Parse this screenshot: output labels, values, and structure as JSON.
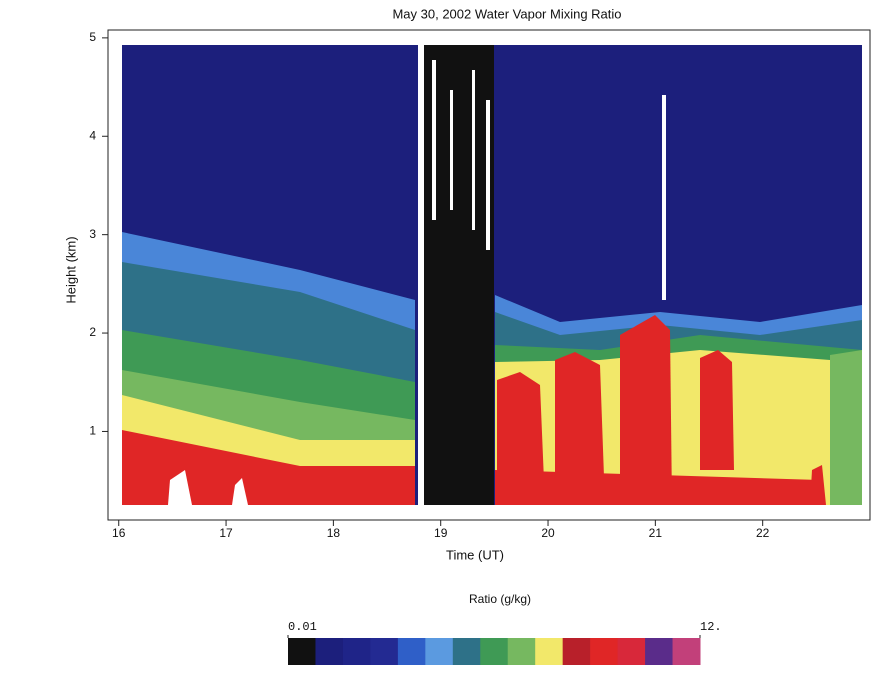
{
  "chart_data": {
    "type": "heatmap",
    "title": "May 30, 2002 Water Vapor Mixing Ratio",
    "xlabel": "Time (UT)",
    "ylabel": "Height (km)",
    "xlim": [
      15.9,
      23
    ],
    "ylim": [
      0.1,
      5.08
    ],
    "xticks": [
      16,
      17,
      18,
      19,
      20,
      21,
      22
    ],
    "yticks": [
      1,
      2,
      3,
      4,
      5
    ],
    "colorbar": {
      "label": "Ratio (g/kg)",
      "min": {
        "value": 0.01,
        "label": "0.01"
      },
      "max": {
        "value": 12,
        "label": "12."
      },
      "colors": [
        "#111111",
        "#1c1f7c",
        "#1f2488",
        "#232a92",
        "#2f5fc8",
        "#5b9ae0",
        "#2e7188",
        "#3f9a55",
        "#76b860",
        "#f2e86a",
        "#b8202a",
        "#e02626",
        "#d8283a",
        "#5a2c8a",
        "#c2407a"
      ]
    }
  }
}
